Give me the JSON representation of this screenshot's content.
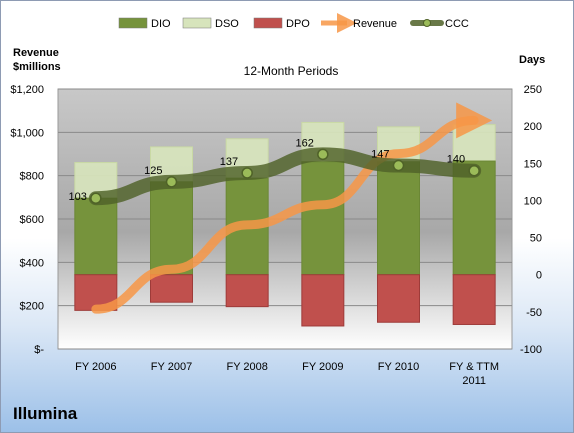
{
  "company": "Illumina",
  "chart_data": {
    "type": "bar",
    "title": "12-Month Periods",
    "categories": [
      "FY 2006",
      "FY 2007",
      "FY 2008",
      "FY 2009",
      "FY 2010",
      "FY & TTM 2011"
    ],
    "left_axis": {
      "title_line1": "Revenue",
      "title_line2": "$millions",
      "ylim": [
        0,
        1200
      ],
      "ticks": [
        0,
        200,
        400,
        600,
        800,
        1000,
        1200
      ],
      "tick_labels": [
        "$-",
        "$200",
        "$400",
        "$600",
        "$800",
        "$1,000",
        "$1,200"
      ]
    },
    "right_axis": {
      "title": "Days",
      "ylim": [
        -100,
        250
      ],
      "ticks": [
        -100,
        -50,
        0,
        50,
        100,
        150,
        200,
        250
      ],
      "tick_labels": [
        "-100",
        "-50",
        "0",
        "50",
        "100",
        "150",
        "200",
        "250"
      ]
    },
    "series": [
      {
        "name": "DIO",
        "axis": "right",
        "kind": "stacked-bar",
        "color": "#76933c",
        "values": [
          103,
          125,
          130,
          152,
          152,
          153
        ]
      },
      {
        "name": "DSO",
        "axis": "right",
        "kind": "stacked-bar",
        "color": "#d7e4bc",
        "values": [
          48,
          47,
          53,
          53,
          47,
          49
        ]
      },
      {
        "name": "DPO",
        "axis": "right",
        "kind": "negative-bar",
        "color": "#c0504d",
        "values": [
          -48,
          -37,
          -43,
          -69,
          -64,
          -67
        ]
      },
      {
        "name": "Revenue",
        "axis": "left",
        "kind": "arrow-line",
        "color": "#f79646",
        "values": [
          184,
          368,
          573,
          666,
          902,
          1055
        ]
      },
      {
        "name": "CCC",
        "axis": "right",
        "kind": "line",
        "color": "#4f6228",
        "values": [
          103,
          125,
          137,
          162,
          147,
          140
        ],
        "labels": [
          "103",
          "125",
          "137",
          "162",
          "147",
          "140"
        ]
      }
    ],
    "grid": true,
    "legend_placement": "top"
  }
}
